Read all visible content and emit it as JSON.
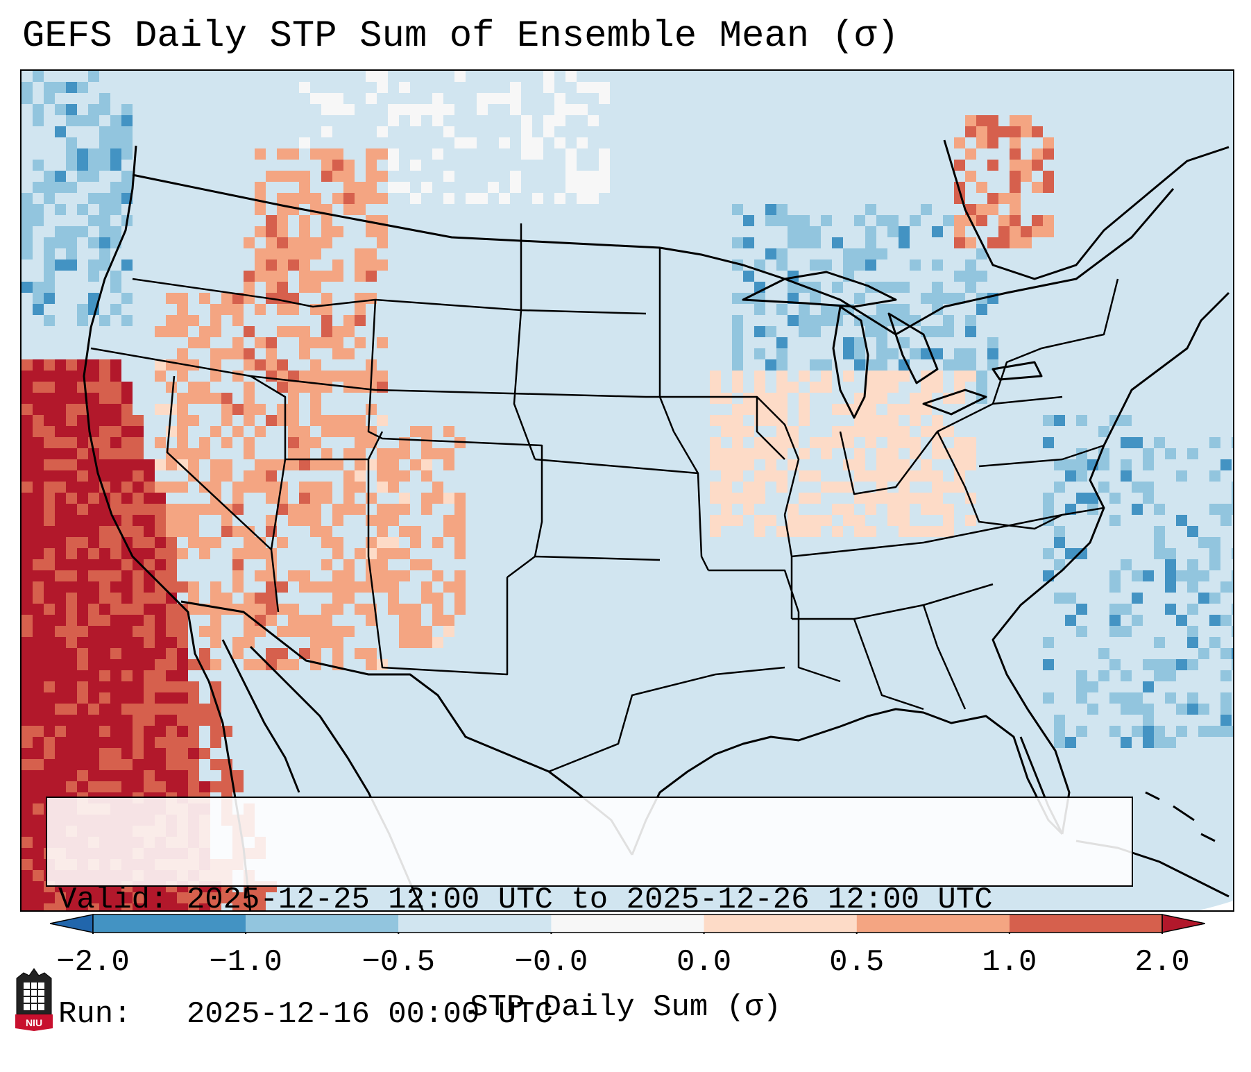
{
  "title": "GEFS Daily STP Sum of Ensemble Mean (σ)",
  "info": {
    "valid_line": "Valid: 2025-12-25 12:00 UTC to 2025-12-26 12:00 UTC",
    "run_line": "Run:   2025-12-16 00:00 UTC"
  },
  "colorbar": {
    "label": "STP Daily Sum (σ)",
    "ticks": [
      "−2.0",
      "−1.0",
      "−0.5",
      "−0.0",
      "0.0",
      "0.5",
      "1.0",
      "2.0"
    ],
    "bins": [
      {
        "range": "< -2.0",
        "color": "#2166ac"
      },
      {
        "range": "-2.0 to -1.0",
        "color": "#4393c3"
      },
      {
        "range": "-1.0 to -0.5",
        "color": "#92c5de"
      },
      {
        "range": "-0.5 to -0.0",
        "color": "#d1e5f0"
      },
      {
        "range": "-0.0 to 0.0",
        "color": "#f7f7f7"
      },
      {
        "range": "0.0 to 0.5",
        "color": "#fddbc7"
      },
      {
        "range": "0.5 to 1.0",
        "color": "#f4a582"
      },
      {
        "range": "1.0 to 2.0",
        "color": "#d6604d"
      },
      {
        "range": "> 2.0",
        "color": "#b2182b"
      }
    ]
  },
  "map": {
    "region": "Continental United States",
    "background_color": "#d1e5f0",
    "high_anomaly_color": "#b2182b",
    "land_outline_color": "#000000"
  },
  "logo": {
    "text": "NIU"
  }
}
